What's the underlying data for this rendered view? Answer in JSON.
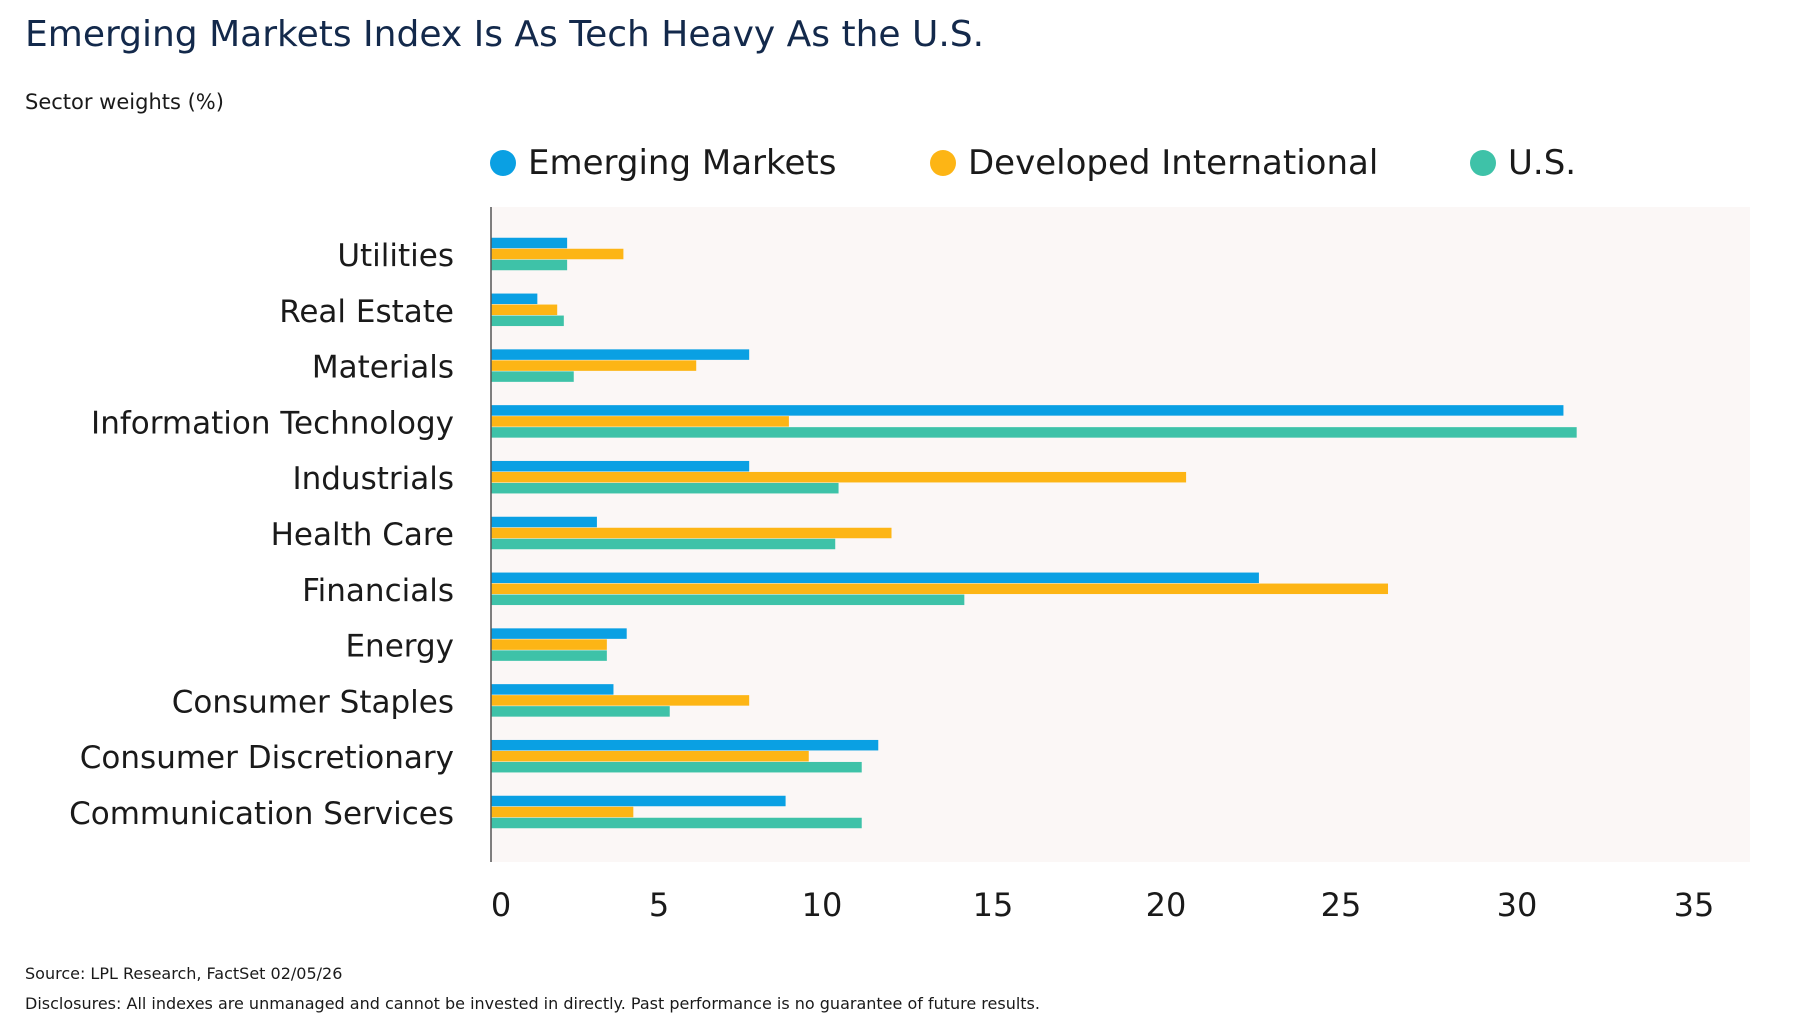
{
  "header": {
    "title": "Emerging Markets Index Is As Tech Heavy As the U.S.",
    "subtitle": "Sector weights (%)"
  },
  "colors": {
    "emerging": "#0aa0e3",
    "developed": "#fdb515",
    "us": "#3ec2a8",
    "plot_background": "#fbf7f6",
    "axis": "#555555"
  },
  "chart_data": {
    "type": "bar",
    "orientation": "horizontal",
    "categories": [
      "Utilities",
      "Real Estate",
      "Materials",
      "Information Technology",
      "Industrials",
      "Health Care",
      "Financials",
      "Energy",
      "Consumer Staples",
      "Consumer Discretionary",
      "Communication Services"
    ],
    "series": [
      {
        "name": "Emerging Markets",
        "color": "#0aa0e3",
        "values": [
          2.3,
          1.4,
          7.8,
          32.4,
          7.8,
          3.2,
          23.2,
          4.1,
          3.7,
          11.7,
          8.9
        ]
      },
      {
        "name": "Developed International",
        "color": "#fdb515",
        "values": [
          4.0,
          2.0,
          6.2,
          9.0,
          21.0,
          12.1,
          27.1,
          3.5,
          7.8,
          9.6,
          4.3
        ]
      },
      {
        "name": "U.S.",
        "color": "#3ec2a8",
        "values": [
          2.3,
          2.2,
          2.5,
          32.8,
          10.5,
          10.4,
          14.3,
          3.5,
          5.4,
          11.2,
          11.2
        ]
      }
    ],
    "xlim": [
      0,
      35
    ],
    "x_ticks": [
      "0",
      "5",
      "10",
      "15",
      "20",
      "25",
      "30",
      "35"
    ],
    "grid": false,
    "legend_position": "top"
  },
  "footer": {
    "source": "Source: LPL Research, FactSet 02/05/26",
    "disclosure": "Disclosures: All indexes are unmanaged and cannot be invested in directly. Past performance is no guarantee of future results."
  }
}
